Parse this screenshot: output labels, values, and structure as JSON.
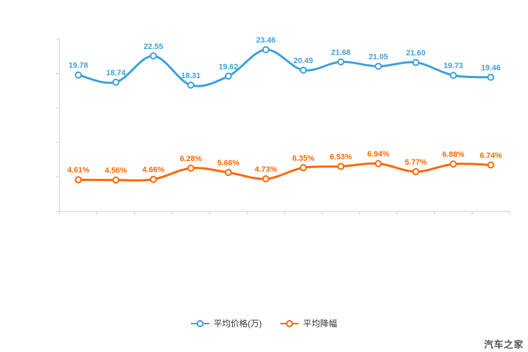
{
  "chart_data": {
    "type": "line",
    "title": "",
    "x_axis_labels_visible": false,
    "y_axis_labels_visible": false,
    "grid": false,
    "axis": {
      "min": 0,
      "max": 25,
      "tick_interval": 5
    },
    "points_per_series": 12,
    "series": [
      {
        "name": "平均价格(万)",
        "color": "#3ba0dc",
        "values": [
          19.78,
          18.74,
          22.55,
          18.31,
          19.62,
          23.46,
          20.49,
          21.68,
          21.05,
          21.6,
          19.73,
          19.46
        ],
        "labels": [
          "19.78",
          "18.74",
          "22.55",
          "18.31",
          "19.62",
          "23.46",
          "20.49",
          "21.68",
          "21.05",
          "21.60",
          "19.73",
          "19.46"
        ]
      },
      {
        "name": "平均降幅",
        "color": "#ff6600",
        "values": [
          4.61,
          4.56,
          4.66,
          6.28,
          5.66,
          4.73,
          6.35,
          6.53,
          6.94,
          5.77,
          6.88,
          6.74
        ],
        "labels": [
          "4.61%",
          "4.56%",
          "4.66%",
          "6.28%",
          "5.66%",
          "4.73%",
          "6.35%",
          "6.53%",
          "6.94%",
          "5.77%",
          "6.88%",
          "6.74%"
        ]
      }
    ],
    "legend_position": "bottom"
  },
  "legend": {
    "items": [
      {
        "label": "平均价格(万)",
        "color": "#3ba0dc"
      },
      {
        "label": "平均降幅",
        "color": "#ff6600"
      }
    ]
  },
  "watermark": "汽车之家"
}
